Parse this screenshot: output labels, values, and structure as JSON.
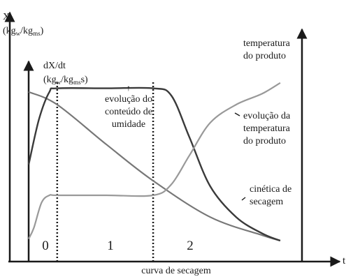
{
  "chart_data": {
    "type": "line",
    "caption": "curva de secagem",
    "x_axis": {
      "label": "t",
      "range": [
        0,
        1
      ]
    },
    "y_axis_left": {
      "label_line1": "X",
      "label_line2_main": "(kg",
      "label_line2_sub1": "w",
      "label_line2_mid": "/kg",
      "label_line2_sub2": "ms",
      "label_line2_end": ")"
    },
    "y_axis_inner": {
      "label_line1": "dX/dt",
      "label_line2_main": "(kg",
      "label_line2_sub1": "w",
      "label_line2_mid": "/kg",
      "label_line2_sub2": "ms",
      "label_line2_end": "s)"
    },
    "y_axis_right": {
      "label_line1": "temperatura",
      "label_line2": "do produto"
    },
    "phases": [
      "0",
      "1",
      "2"
    ],
    "phase_boundaries": [
      0.11,
      0.48
    ],
    "series": [
      {
        "key": "moisture",
        "name": "evolução do conteúdo de umidade",
        "color": "#777777",
        "x": [
          0.0,
          0.11,
          0.3,
          0.48,
          0.7,
          0.9,
          0.97
        ],
        "y": [
          0.87,
          0.8,
          0.58,
          0.38,
          0.18,
          0.08,
          0.05
        ]
      },
      {
        "key": "drying_rate",
        "name": "cinética de secagem",
        "color": "#3a3a3a",
        "x": [
          0.0,
          0.04,
          0.08,
          0.11,
          0.3,
          0.48,
          0.55,
          0.62,
          0.7,
          0.8,
          0.9,
          0.97
        ],
        "y": [
          0.47,
          0.72,
          0.87,
          0.89,
          0.89,
          0.89,
          0.85,
          0.62,
          0.35,
          0.18,
          0.09,
          0.05
        ]
      },
      {
        "key": "temperature",
        "name": "evolução da temperatura do produto",
        "color": "#999999",
        "x": [
          0.0,
          0.02,
          0.05,
          0.08,
          0.11,
          0.3,
          0.48,
          0.55,
          0.62,
          0.7,
          0.8,
          0.9,
          0.97
        ],
        "y": [
          0.06,
          0.12,
          0.26,
          0.3,
          0.3,
          0.3,
          0.3,
          0.36,
          0.52,
          0.7,
          0.8,
          0.86,
          0.92
        ]
      }
    ],
    "annotations": {
      "moisture_line1": "evolução do",
      "moisture_line2": "conteúdo de",
      "moisture_line3": "umidade",
      "temperature_line1": "evolução da",
      "temperature_line2": "temperatura",
      "temperature_line3": "do produto",
      "kinetics_line1": "cinética de",
      "kinetics_line2": "secagem",
      "moisture_arrow_glyph": "↑"
    }
  }
}
